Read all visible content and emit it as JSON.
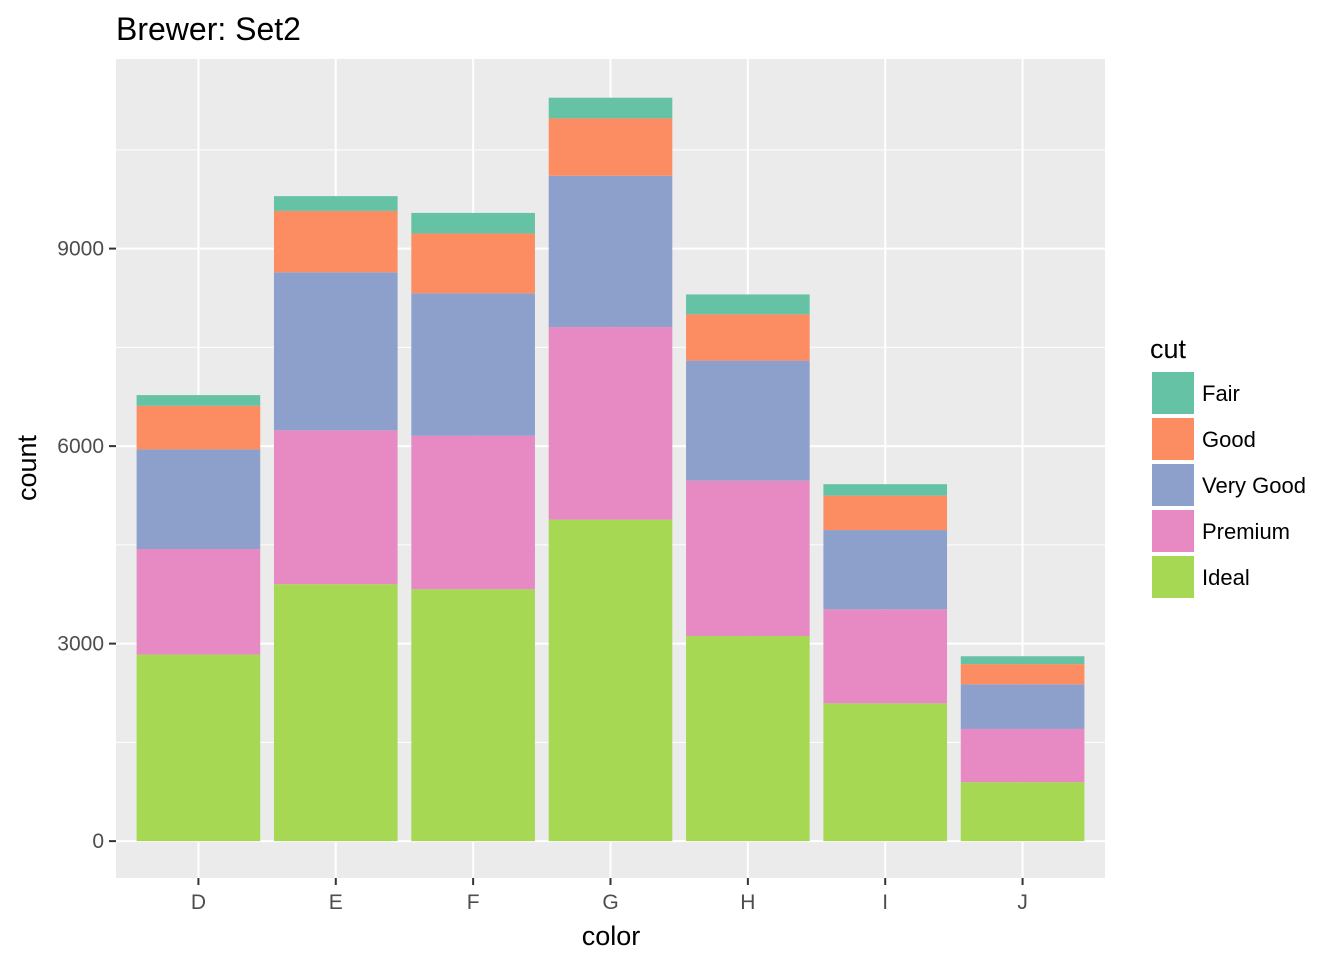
{
  "chart_data": {
    "type": "bar",
    "stacked": true,
    "title": "Brewer: Set2",
    "xlabel": "color",
    "ylabel": "count",
    "categories": [
      "D",
      "E",
      "F",
      "G",
      "H",
      "I",
      "J"
    ],
    "ylim": [
      -560,
      11880
    ],
    "yticks": [
      0,
      3000,
      6000,
      9000
    ],
    "ytick_labels": [
      "0",
      "3000",
      "6000",
      "9000"
    ],
    "grid": true,
    "legend": {
      "title": "cut",
      "position": "right"
    },
    "series": [
      {
        "name": "Ideal",
        "color": "#A6D854",
        "values": [
          2834,
          3903,
          3826,
          4884,
          3115,
          2093,
          896
        ]
      },
      {
        "name": "Premium",
        "color": "#E78AC3",
        "values": [
          1603,
          2337,
          2331,
          2924,
          2360,
          1428,
          808
        ]
      },
      {
        "name": "Very Good",
        "color": "#8DA0CB",
        "values": [
          1513,
          2400,
          2164,
          2299,
          1824,
          1204,
          678
        ]
      },
      {
        "name": "Good",
        "color": "#FC8D62",
        "values": [
          662,
          933,
          909,
          871,
          702,
          522,
          307
        ]
      },
      {
        "name": "Fair",
        "color": "#66C2A5",
        "values": [
          163,
          224,
          312,
          314,
          303,
          175,
          119
        ]
      }
    ],
    "legend_order": [
      "Fair",
      "Good",
      "Very Good",
      "Premium",
      "Ideal"
    ]
  }
}
